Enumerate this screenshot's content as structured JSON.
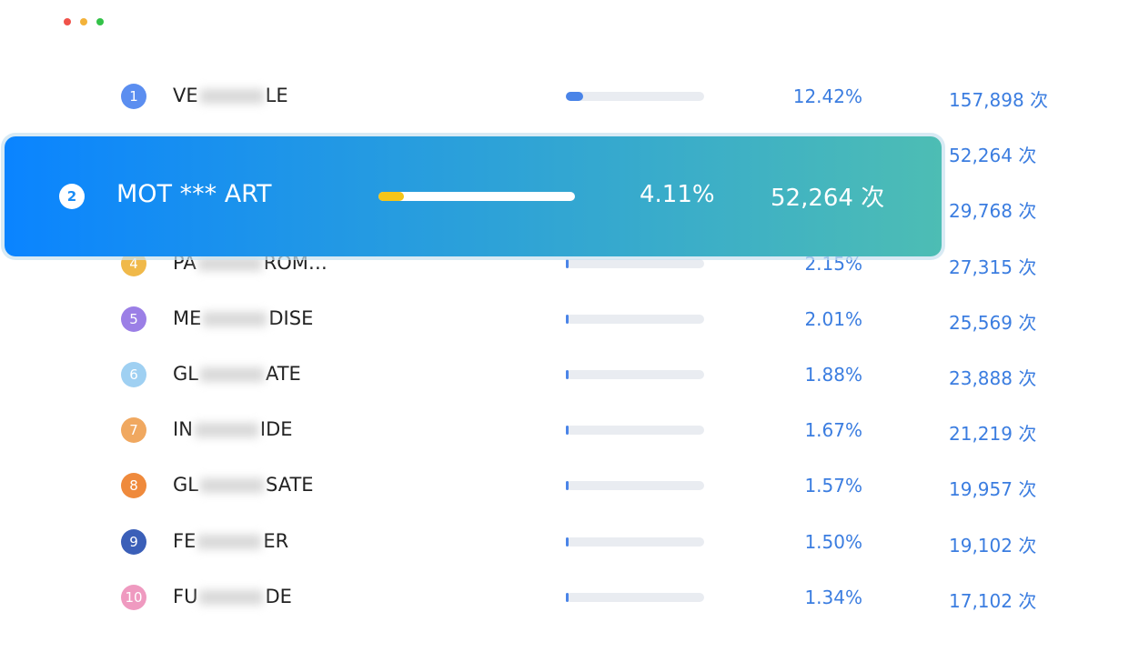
{
  "list": {
    "rows": [
      {
        "rank": 1,
        "name": [
          "VE",
          "LE"
        ],
        "percent": "12.42%",
        "count": "157,898 次"
      },
      {
        "count": "52,264 次"
      },
      {
        "count": "29,768 次"
      },
      {
        "rank": 4,
        "name": [
          "PA",
          "ROM…"
        ],
        "percent": "2.15%",
        "count": "27,315 次"
      },
      {
        "rank": 5,
        "name": [
          "ME",
          "DISE"
        ],
        "percent": "2.01%",
        "count": "25,569 次"
      },
      {
        "rank": 6,
        "name": [
          "GL",
          "ATE"
        ],
        "percent": "1.88%",
        "count": "23,888 次"
      },
      {
        "rank": 7,
        "name": [
          "IN",
          "IDE"
        ],
        "percent": "1.67%",
        "count": "21,219 次"
      },
      {
        "rank": 8,
        "name": [
          "GL",
          "SATE"
        ],
        "percent": "1.57%",
        "count": "19,957 次"
      },
      {
        "rank": 9,
        "name": [
          "FE",
          "ER"
        ],
        "percent": "1.50%",
        "count": "19,102 次"
      },
      {
        "rank": 10,
        "name": [
          "FU",
          "DE"
        ],
        "percent": "1.34%",
        "count": "17,102 次"
      }
    ]
  },
  "highlight": {
    "rank": 2,
    "name": "MOT *** ART",
    "percent": "4.11%",
    "count": "52,264 次"
  }
}
